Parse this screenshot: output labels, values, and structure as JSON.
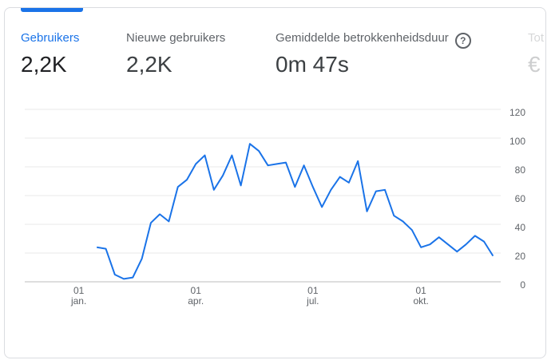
{
  "tabs": [
    {
      "label": "Gebruikers",
      "value": "2,2K"
    },
    {
      "label": "Nieuwe gebruikers",
      "value": "2,2K"
    },
    {
      "label": "Gemiddelde betrokkenheidsduur",
      "value": "0m 47s"
    },
    {
      "label": "Tot",
      "value": "€"
    }
  ],
  "chart_data": {
    "type": "line",
    "categories": [
      null,
      null,
      null,
      null,
      null,
      null,
      "01 jan.",
      null,
      null,
      null,
      null,
      null,
      null,
      null,
      null,
      null,
      null,
      null,
      null,
      "01 apr.",
      null,
      null,
      null,
      null,
      null,
      null,
      null,
      null,
      null,
      null,
      null,
      null,
      "01 jul.",
      null,
      null,
      null,
      null,
      null,
      null,
      null,
      null,
      null,
      null,
      null,
      "01 okt.",
      null,
      null,
      null,
      null,
      null,
      null,
      null,
      null
    ],
    "series": [
      {
        "name": "Gebruikers",
        "color": "#1a73e8",
        "values": [
          null,
          null,
          null,
          null,
          null,
          null,
          null,
          null,
          24,
          23,
          5,
          2,
          3,
          16,
          41,
          47,
          42,
          66,
          71,
          82,
          88,
          64,
          74,
          88,
          67,
          96,
          91,
          81,
          82,
          83,
          66,
          81,
          66,
          52,
          64,
          73,
          69,
          84,
          49,
          63,
          64,
          46,
          42,
          36,
          24,
          26,
          31,
          26,
          21,
          26,
          32,
          28,
          18
        ]
      }
    ],
    "ylim": [
      0,
      120
    ],
    "yticks": [
      0,
      20,
      40,
      60,
      80,
      100,
      120
    ],
    "grid": true
  }
}
